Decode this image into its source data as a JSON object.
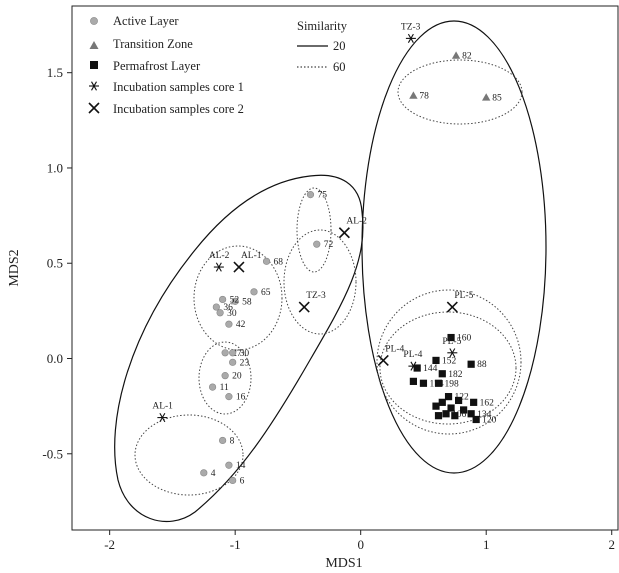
{
  "chart_data": {
    "type": "scatter",
    "xlabel": "MDS1",
    "ylabel": "MDS2",
    "xlim": [
      -2.3,
      2.05
    ],
    "ylim": [
      -0.9,
      1.85
    ],
    "x_ticks": [
      -2,
      -1,
      0,
      1,
      2
    ],
    "y_ticks": [
      -0.5,
      0.0,
      0.5,
      1.0,
      1.5
    ],
    "x_tick_labels": [
      "-2",
      "-1",
      "0",
      "1",
      "2"
    ],
    "y_tick_labels": [
      "-0.5",
      "0.0",
      "0.5",
      "1.0",
      "1.5"
    ],
    "grid": false,
    "legend_placement": "top-left",
    "legend": {
      "groups_title": "",
      "similarity_title": "Similarity",
      "groups": [
        {
          "key": "active",
          "label": "Active Layer",
          "marker": "circle"
        },
        {
          "key": "transition",
          "label": "Transition Zone",
          "marker": "triangle"
        },
        {
          "key": "permafrost",
          "label": "Permafrost Layer",
          "marker": "square"
        },
        {
          "key": "core1",
          "label": "Incubation samples core 1",
          "marker": "asterisk"
        },
        {
          "key": "core2",
          "label": "Incubation samples core 2",
          "marker": "cross"
        }
      ],
      "similarity": [
        {
          "label": "20",
          "style": "solid"
        },
        {
          "label": "60",
          "style": "dotted"
        }
      ]
    },
    "colors": {
      "active": "#aaaaaa",
      "transition": "#777777",
      "permafrost": "#111111",
      "incubation": "#111111",
      "axis": "#222222"
    },
    "series": [
      {
        "key": "active",
        "points": [
          {
            "x": -0.4,
            "y": 0.86,
            "label": "75"
          },
          {
            "x": -0.35,
            "y": 0.6,
            "label": "72"
          },
          {
            "x": -0.75,
            "y": 0.51,
            "label": "68"
          },
          {
            "x": -0.85,
            "y": 0.35,
            "label": "65"
          },
          {
            "x": -1.0,
            "y": 0.3,
            "label": "58"
          },
          {
            "x": -1.1,
            "y": 0.31,
            "label": "52"
          },
          {
            "x": -1.15,
            "y": 0.27,
            "label": "36"
          },
          {
            "x": -1.12,
            "y": 0.24,
            "label": "30"
          },
          {
            "x": -1.05,
            "y": 0.18,
            "label": "42"
          },
          {
            "x": -1.08,
            "y": 0.03,
            "label": "27"
          },
          {
            "x": -1.02,
            "y": 0.03,
            "label": "30"
          },
          {
            "x": -1.02,
            "y": -0.02,
            "label": "23"
          },
          {
            "x": -1.08,
            "y": -0.09,
            "label": "20"
          },
          {
            "x": -1.18,
            "y": -0.15,
            "label": "11"
          },
          {
            "x": -1.05,
            "y": -0.2,
            "label": "16"
          },
          {
            "x": -1.1,
            "y": -0.43,
            "label": "8"
          },
          {
            "x": -1.05,
            "y": -0.56,
            "label": "14"
          },
          {
            "x": -1.25,
            "y": -0.6,
            "label": "4"
          },
          {
            "x": -1.02,
            "y": -0.64,
            "label": "6"
          }
        ]
      },
      {
        "key": "transition",
        "points": [
          {
            "x": 0.76,
            "y": 1.59,
            "label": "82"
          },
          {
            "x": 0.42,
            "y": 1.38,
            "label": "78"
          },
          {
            "x": 1.0,
            "y": 1.37,
            "label": "85"
          }
        ]
      },
      {
        "key": "permafrost",
        "points": [
          {
            "x": 0.72,
            "y": 0.11,
            "label": "160"
          },
          {
            "x": 0.6,
            "y": -0.01,
            "label": "152"
          },
          {
            "x": 0.88,
            "y": -0.03,
            "label": "88"
          },
          {
            "x": 0.45,
            "y": -0.05,
            "label": "144"
          },
          {
            "x": 0.65,
            "y": -0.08,
            "label": "182"
          },
          {
            "x": 0.42,
            "y": -0.12,
            "label": ""
          },
          {
            "x": 0.5,
            "y": -0.13,
            "label": "174"
          },
          {
            "x": 0.62,
            "y": -0.13,
            "label": "198"
          },
          {
            "x": 0.7,
            "y": -0.2,
            "label": "122"
          },
          {
            "x": 0.9,
            "y": -0.23,
            "label": "162"
          },
          {
            "x": 0.78,
            "y": -0.22,
            "label": ""
          },
          {
            "x": 0.65,
            "y": -0.23,
            "label": ""
          },
          {
            "x": 0.6,
            "y": -0.25,
            "label": ""
          },
          {
            "x": 0.72,
            "y": -0.26,
            "label": ""
          },
          {
            "x": 0.82,
            "y": -0.27,
            "label": ""
          },
          {
            "x": 0.88,
            "y": -0.29,
            "label": "134"
          },
          {
            "x": 0.68,
            "y": -0.29,
            "label": "106"
          },
          {
            "x": 0.75,
            "y": -0.3,
            "label": ""
          },
          {
            "x": 0.92,
            "y": -0.32,
            "label": "120"
          },
          {
            "x": 0.62,
            "y": -0.3,
            "label": ""
          }
        ]
      },
      {
        "key": "core1",
        "points": [
          {
            "x": -1.58,
            "y": -0.31,
            "label": "AL-1"
          },
          {
            "x": -1.13,
            "y": 0.48,
            "label": "AL-2"
          },
          {
            "x": 0.4,
            "y": 1.68,
            "label": "TZ-3"
          },
          {
            "x": 0.42,
            "y": -0.04,
            "label": "PL-4"
          },
          {
            "x": 0.73,
            "y": 0.03,
            "label": "PL-5"
          }
        ]
      },
      {
        "key": "core2",
        "points": [
          {
            "x": -0.97,
            "y": 0.48,
            "label": "AL-1"
          },
          {
            "x": -0.13,
            "y": 0.66,
            "label": "AL-2"
          },
          {
            "x": -0.45,
            "y": 0.27,
            "label": "TZ-3"
          },
          {
            "x": 0.18,
            "y": -0.01,
            "label": "PL-4"
          },
          {
            "x": 0.73,
            "y": 0.27,
            "label": "PL-5"
          }
        ]
      }
    ]
  }
}
